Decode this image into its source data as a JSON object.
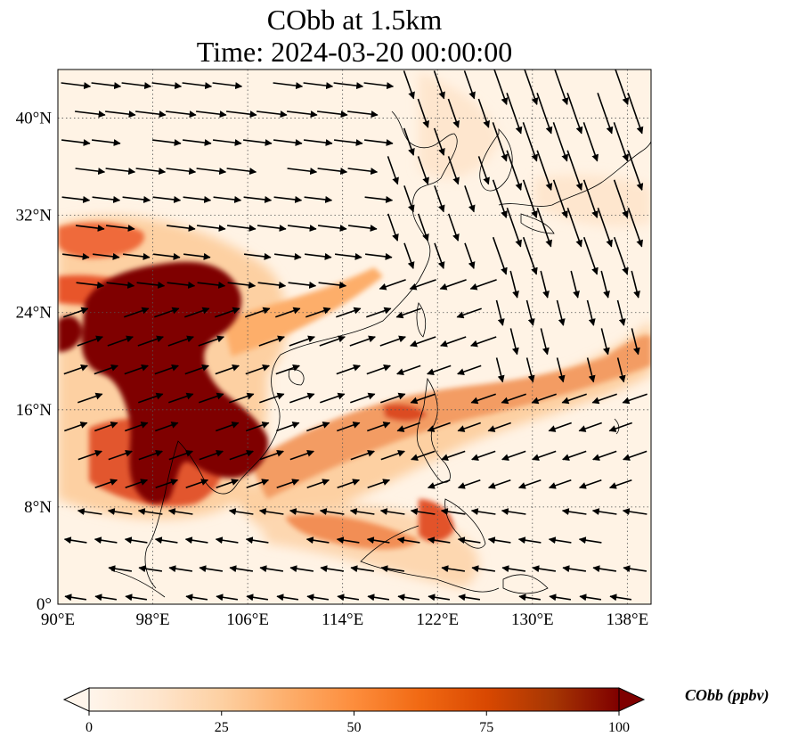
{
  "title": {
    "line1": "CObb at 1.5km",
    "line2": "Time: 2024-03-20 00:00:00"
  },
  "map": {
    "variable": "CObb",
    "level": "1.5km",
    "time": "2024-03-20 00:00:00",
    "lon_range": [
      90,
      140
    ],
    "lat_range": [
      0,
      44
    ],
    "lon_ticks": [
      "90°E",
      "98°E",
      "106°E",
      "114°E",
      "122°E",
      "130°E",
      "138°E"
    ],
    "lat_ticks": [
      "0°",
      "8°N",
      "16°N",
      "24°N",
      "32°N",
      "40°N"
    ],
    "lon_tick_values": [
      90,
      98,
      106,
      114,
      122,
      130,
      138
    ],
    "lat_tick_values": [
      0,
      8,
      16,
      24,
      32,
      40
    ],
    "gridlines": "dotted"
  },
  "colorbar": {
    "label": "CObb (ppbv)",
    "ticks": [
      "0",
      "25",
      "50",
      "75",
      "100"
    ],
    "tick_values": [
      0,
      25,
      50,
      75,
      100
    ],
    "min": 0,
    "max": 100,
    "extend": "both",
    "colormap": [
      "#fff5eb",
      "#fee6ce",
      "#fdd0a2",
      "#fdae6b",
      "#fd8d3c",
      "#f16913",
      "#d94801",
      "#a63603",
      "#7f0000"
    ]
  }
}
